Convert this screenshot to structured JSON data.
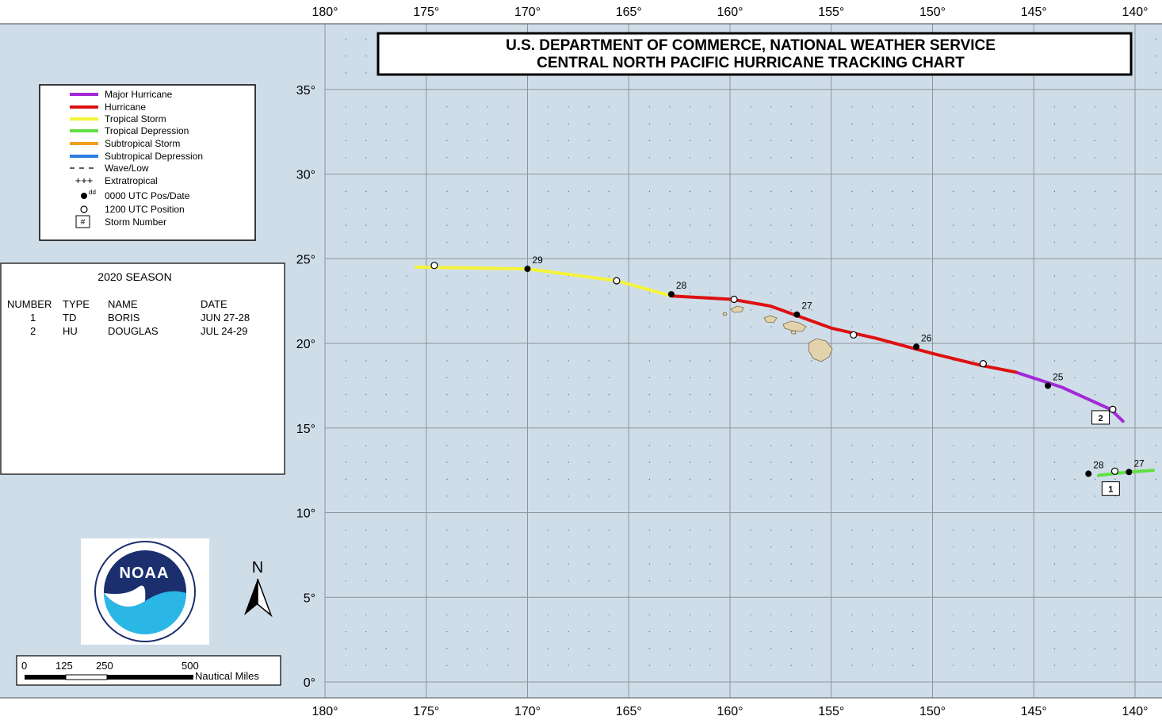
{
  "title": {
    "line1": "U.S. DEPARTMENT OF COMMERCE, NATIONAL WEATHER SERVICE",
    "line2": "CENTRAL NORTH PACIFIC HURRICANE TRACKING CHART"
  },
  "colors": {
    "ocean": "#cfdde9",
    "land": "#e3d3ad",
    "major_hurricane": "#a22ad8",
    "hurricane": "#dd1111",
    "tropical_storm": "#f4f43a",
    "tropical_depression": "#62e043",
    "subtropical_storm": "#f0a020",
    "subtropical_depression": "#2a7ee0"
  },
  "lon_ticks": [
    "180°",
    "175°",
    "170°",
    "165°",
    "160°",
    "155°",
    "150°",
    "145°",
    "140°"
  ],
  "lat_ticks": [
    "0°",
    "5°",
    "10°",
    "15°",
    "20°",
    "25°",
    "30°",
    "35°"
  ],
  "legend": {
    "items": [
      {
        "label": "Major Hurricane",
        "style": "major_hurricane"
      },
      {
        "label": "Hurricane",
        "style": "hurricane"
      },
      {
        "label": "Tropical Storm",
        "style": "tropical_storm"
      },
      {
        "label": "Tropical Depression",
        "style": "tropical_depression"
      },
      {
        "label": "Subtropical Storm",
        "style": "subtropical_storm"
      },
      {
        "label": "Subtropical Depression",
        "style": "subtropical_depression"
      },
      {
        "label": "Wave/Low",
        "style": "dashed"
      },
      {
        "label": "Extratropical",
        "style": "plus"
      },
      {
        "label": "0000 UTC Pos/Date",
        "style": "filled-dot",
        "sup": "dd"
      },
      {
        "label": "1200 UTC Position",
        "style": "open-dot"
      },
      {
        "label": "Storm Number",
        "style": "box",
        "box_text": "#"
      }
    ]
  },
  "season": {
    "title": "2020 SEASON",
    "headers": [
      "NUMBER",
      "TYPE",
      "NAME",
      "DATE"
    ],
    "rows": [
      [
        "1",
        "TD",
        "BORIS",
        "JUN 27-28"
      ],
      [
        "2",
        "HU",
        "DOUGLAS",
        "JUL 24-29"
      ]
    ]
  },
  "north_label": "N",
  "scale_bar": {
    "ticks": [
      "0",
      "125",
      "250",
      "500"
    ],
    "unit": "Nautical Miles"
  },
  "logo_text": "NOAA",
  "chart_data": {
    "type": "track-map",
    "lon_range": [
      180,
      139
    ],
    "lat_range": [
      0,
      38
    ],
    "storms": [
      {
        "number": "1",
        "segments": [
          {
            "category": "tropical_depression",
            "points": [
              [
                139.1,
                12.5
              ],
              [
                140.3,
                12.4
              ],
              [
                141.8,
                12.2
              ]
            ]
          }
        ],
        "positions": [
          {
            "lon": 140.3,
            "lat": 12.4,
            "time": "0000",
            "date": "27"
          },
          {
            "lon": 141.0,
            "lat": 12.45,
            "time": "1200"
          },
          {
            "lon": 142.3,
            "lat": 12.3,
            "time": "0000",
            "date": "28"
          }
        ],
        "label_pos": [
          141.2,
          11.4
        ]
      },
      {
        "number": "2",
        "segments": [
          {
            "category": "major_hurricane",
            "points": [
              [
                140.6,
                15.4
              ],
              [
                141.2,
                16.1
              ],
              [
                143.6,
                17.4
              ],
              [
                145.9,
                18.3
              ]
            ]
          },
          {
            "category": "hurricane",
            "points": [
              [
                145.9,
                18.3
              ],
              [
                147.6,
                18.7
              ],
              [
                150.0,
                19.4
              ],
              [
                152.8,
                20.3
              ],
              [
                155.0,
                20.9
              ],
              [
                158.0,
                22.2
              ],
              [
                159.9,
                22.6
              ],
              [
                162.9,
                22.8
              ]
            ]
          },
          {
            "category": "tropical_storm",
            "points": [
              [
                162.9,
                22.8
              ],
              [
                165.6,
                23.7
              ],
              [
                170.0,
                24.4
              ],
              [
                175.5,
                24.5
              ]
            ]
          }
        ],
        "positions": [
          {
            "lon": 141.1,
            "lat": 16.1,
            "time": "1200"
          },
          {
            "lon": 144.3,
            "lat": 17.5,
            "time": "0000",
            "date": "25"
          },
          {
            "lon": 147.5,
            "lat": 18.8,
            "time": "1200"
          },
          {
            "lon": 150.8,
            "lat": 19.8,
            "time": "0000",
            "date": "26"
          },
          {
            "lon": 153.9,
            "lat": 20.5,
            "time": "1200"
          },
          {
            "lon": 156.7,
            "lat": 21.7,
            "time": "0000",
            "date": "27"
          },
          {
            "lon": 159.8,
            "lat": 22.6,
            "time": "1200"
          },
          {
            "lon": 162.9,
            "lat": 22.9,
            "time": "0000",
            "date": "28"
          },
          {
            "lon": 165.6,
            "lat": 23.7,
            "time": "1200"
          },
          {
            "lon": 170.0,
            "lat": 24.4,
            "time": "0000",
            "date": "29"
          },
          {
            "lon": 174.6,
            "lat": 24.6,
            "time": "1200"
          }
        ],
        "label_pos": [
          141.7,
          15.6
        ]
      }
    ]
  }
}
